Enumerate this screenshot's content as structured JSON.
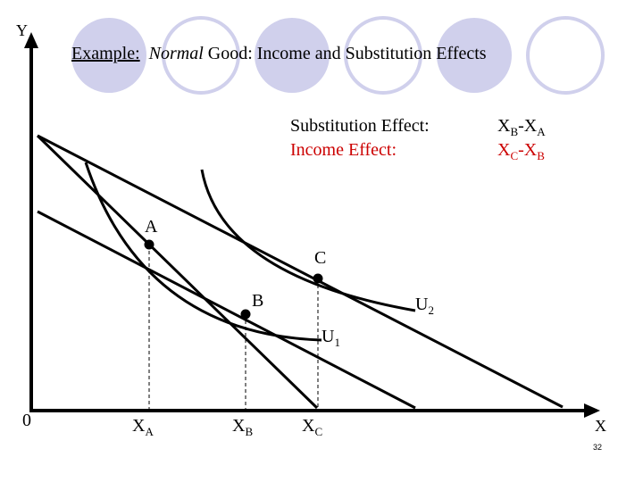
{
  "slide": {
    "title_prefix": "Example:",
    "title_em": "Normal",
    "title_rest": "Good: Income and Substitution Effects",
    "page_number": "32"
  },
  "legend": {
    "substitution_label": "Substitution Effect:",
    "substitution_value": {
      "a": "X",
      "a_sub": "B",
      "sep": "-X",
      "b_sub": "A"
    },
    "income_label": "Income Effect:",
    "income_value": {
      "a": "X",
      "a_sub": "C",
      "sep": "-X",
      "b_sub": "B"
    }
  },
  "axes": {
    "y_label": "Y",
    "x_label": "X",
    "origin_label": "0"
  },
  "points": {
    "a": "A",
    "b": "B",
    "c": "C"
  },
  "curves": {
    "u1": "U",
    "u1_sub": "1",
    "u2": "U",
    "u2_sub": "2"
  },
  "ticks": [
    {
      "main": "X",
      "sub": "A"
    },
    {
      "main": "X",
      "sub": "B"
    },
    {
      "main": "X",
      "sub": "C"
    }
  ],
  "colors": {
    "accent_red": "#cc0000",
    "circle_fill": "#d0d0ec",
    "axis": "#000000"
  }
}
